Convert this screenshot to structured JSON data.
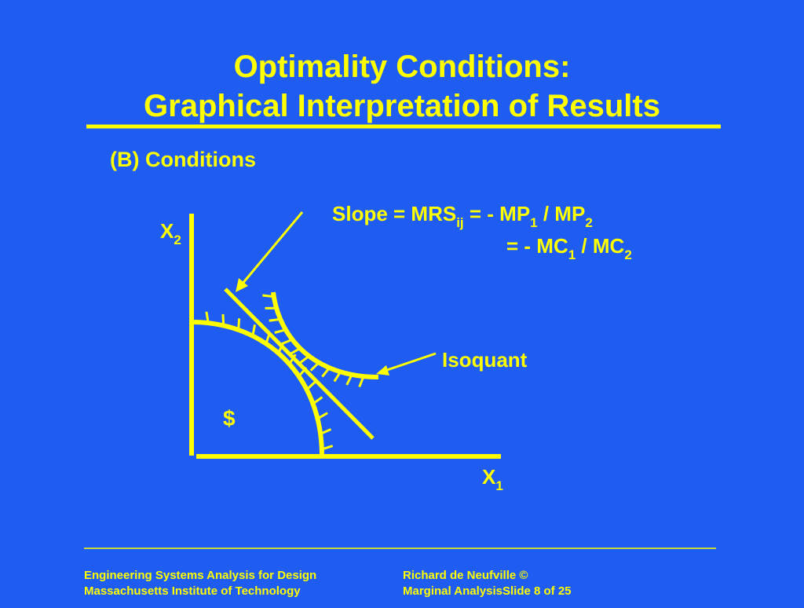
{
  "title": {
    "line1": "Optimality Conditions:",
    "line2": "Graphical Interpretation of Results"
  },
  "subtitle": "(B)  Conditions",
  "diagram": {
    "slope_label": {
      "line1": {
        "a": "Slope = MRS",
        "sub1": "ij",
        "b": " = - MP",
        "sub2": "1",
        "c": " / MP",
        "sub3": "2"
      },
      "line2": {
        "a": "= - MC",
        "sub1": "1",
        "b": " / MC",
        "sub2": "2"
      }
    },
    "y_axis_label": {
      "text": "X",
      "sub": "2"
    },
    "x_axis_label": {
      "text": "X",
      "sub": "1"
    },
    "isoquant_label": "Isoquant",
    "budget_label": "$"
  },
  "footer": {
    "left": [
      "Engineering Systems Analysis for Design",
      "Massachusetts Institute of Technology"
    ],
    "right": [
      "Richard de Neufville ©",
      "Marginal AnalysisSlide 8 of 25"
    ]
  }
}
